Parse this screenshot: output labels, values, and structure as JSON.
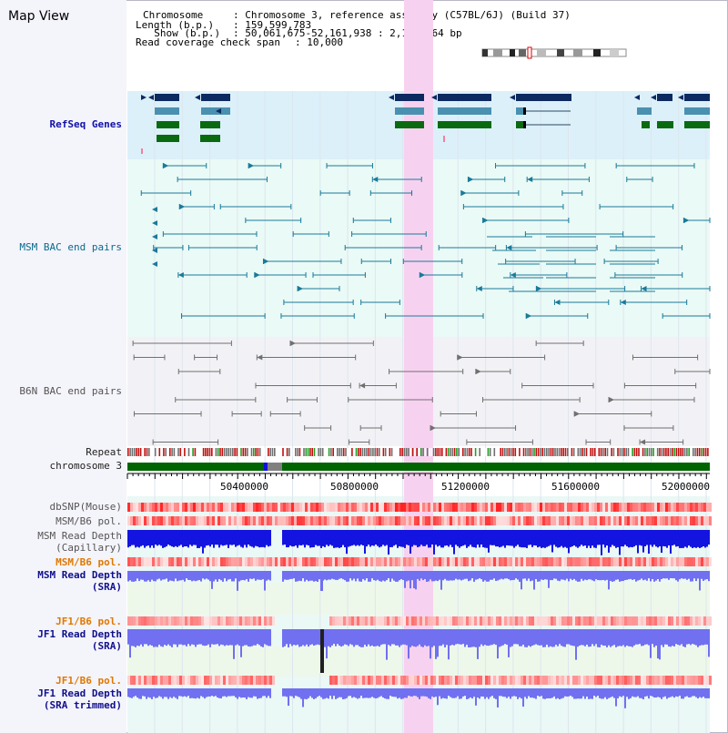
{
  "app": {
    "title": "Map View"
  },
  "info": {
    "chromosome_key": "Chromosome",
    "chromosome_val": ": Chromosome 3, reference assembly (C57BL/6J) (Build 37)",
    "length_key": "Length (b.p.)",
    "length_val": ": 159,599,783",
    "show_key": "  Show (b.p.)",
    "show_val": ": 50,061,675-52,161,938 : 2,100,264 bp",
    "coverage_key": "Read coverage check span",
    "coverage_val": ": 10,000"
  },
  "tracks": {
    "refseq": "RefSeq Genes",
    "msm_bac": "MSM BAC end pairs",
    "b6n_bac": "B6N BAC end pairs",
    "repeat": "Repeat",
    "chromosome": "chromosome 3",
    "dbsnp": "dbSNP(Mouse)",
    "msm_b6_pol_1": "MSM/B6 pol.",
    "msm_read_cap_1": "MSM Read Depth",
    "msm_read_cap_2": "(Capillary)",
    "msm_b6_pol_2": "MSM/B6 pol.",
    "msm_read_sra_1": "MSM Read Depth",
    "msm_read_sra_2": "(SRA)",
    "jf1_b6_pol_1": "JF1/B6 pol.",
    "jf1_read_sra_1": "JF1 Read Depth",
    "jf1_read_sra_2": "(SRA)",
    "jf1_b6_pol_2": "JF1/B6 pol.",
    "jf1_read_trim_1": "JF1 Read Depth",
    "jf1_read_trim_2": "(SRA trimmed)"
  },
  "axis": {
    "ticks": [
      "50400000",
      "50800000",
      "51200000",
      "51600000",
      "52000000"
    ]
  },
  "colors": {
    "refseq_bg": "#dcf0fa",
    "msm_bg": "#eafaf6",
    "b6n_bg": "#f2f2f6",
    "highlight": "#f7d2f0",
    "gene_navy": "#0c2a60",
    "gene_teal": "#4a90b0",
    "gene_green": "#0a6a10",
    "bac_teal": "#1a7a9a",
    "bac_gray": "#707070",
    "chromosome_green": "#006400",
    "depth_blue": "#1414e0",
    "depth_light": "#7070f0",
    "pol_red": "#e02020"
  },
  "icons": {
    "ideogram": "chromosome-ideogram-icon"
  }
}
